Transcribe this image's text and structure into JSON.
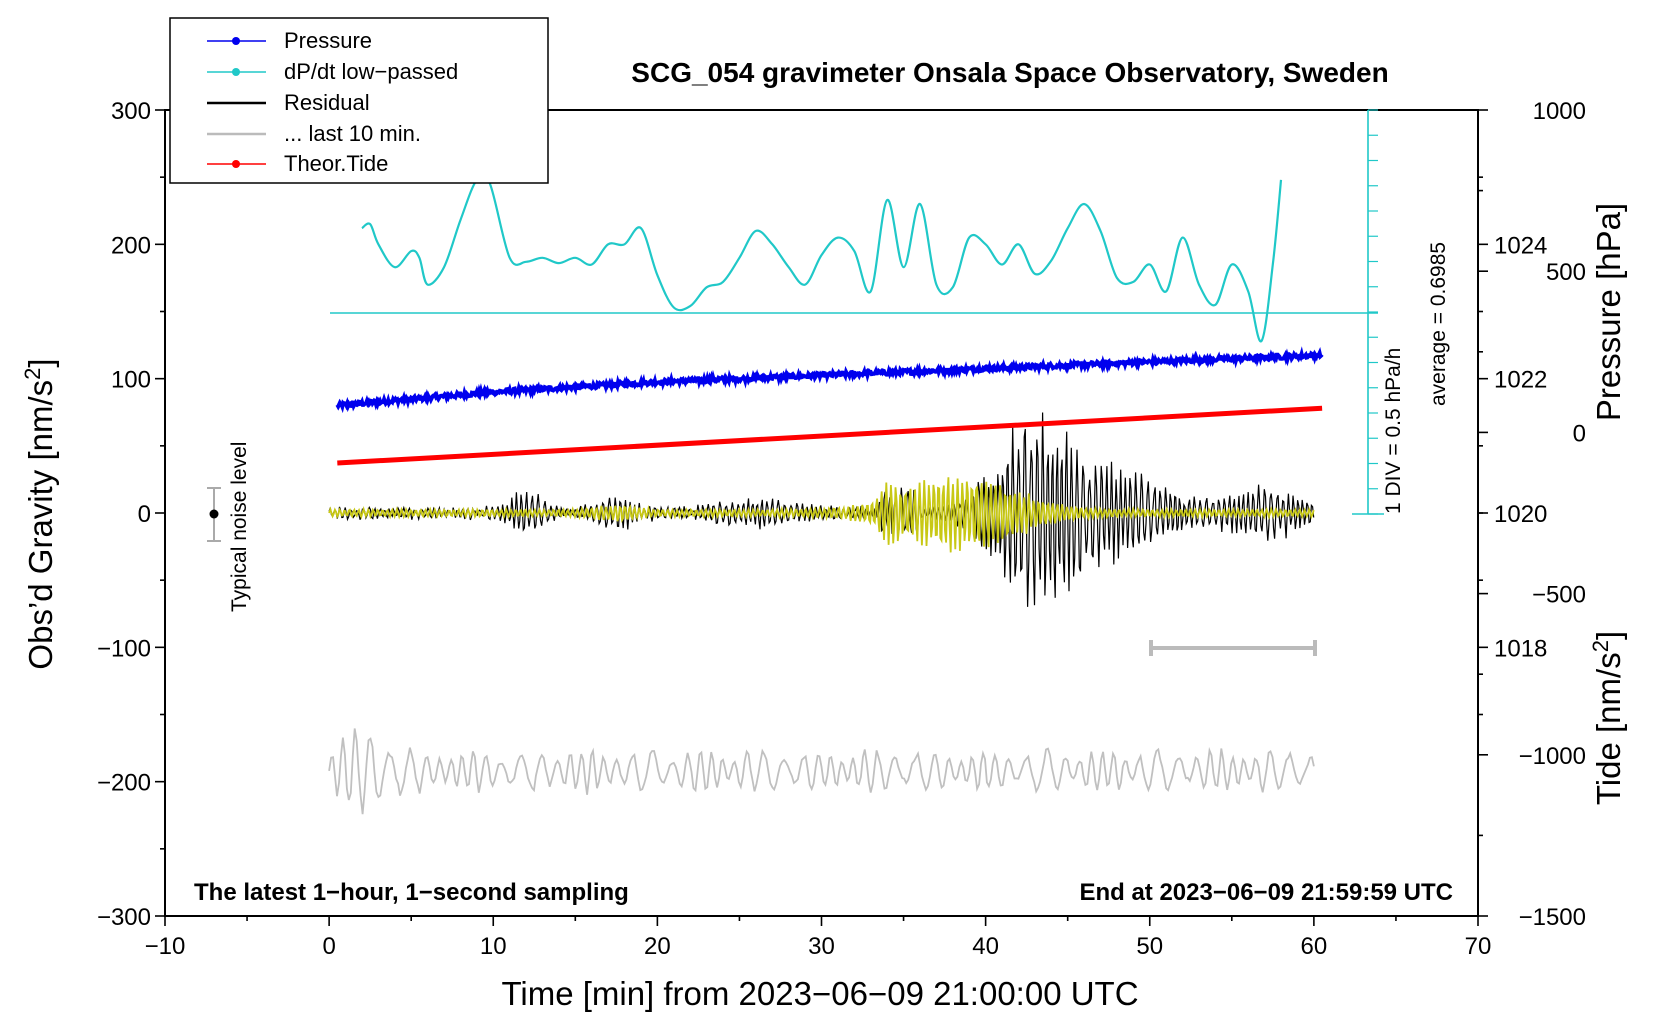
{
  "chart_data": {
    "type": "line",
    "title": "SCG_054 gravimeter Onsala Space Observatory, Sweden",
    "xlabel": "Time [min] from 2023−06−09 21:00:00 UTC",
    "ylabel_left": "Obs’d Gravity [nm/s",
    "ylabel_left_sup": "2",
    "ylabel_left_end": "]",
    "ylabel_pressure": "Pressure [hPa]",
    "ylabel_tide": "Tide [nm/s",
    "ylabel_tide_sup": "2",
    "ylabel_tide_end": "]",
    "xlim": [
      -10,
      70
    ],
    "ylim": [
      -300,
      300
    ],
    "x_ticks": [
      -10,
      0,
      10,
      20,
      30,
      40,
      50,
      60,
      70
    ],
    "x_tick_labels": [
      "−10",
      "0",
      "10",
      "20",
      "30",
      "40",
      "50",
      "60",
      "70"
    ],
    "y_ticks": [
      -300,
      -200,
      -100,
      0,
      100,
      200,
      300
    ],
    "y_tick_labels": [
      "−300",
      "−200",
      "−100",
      "0",
      "100",
      "200",
      "300"
    ],
    "pressure_axis": {
      "ticks": [
        1018,
        1020,
        1022,
        1024
      ],
      "tick_labels": [
        "1018",
        "1020",
        "1022",
        "1024"
      ],
      "range": [
        1014,
        1026
      ]
    },
    "tide_axis": {
      "ticks": [
        -1500,
        -1000,
        -500,
        0,
        500,
        1000
      ],
      "tick_labels": [
        "−1500",
        "−1000",
        "−500",
        "0",
        "500",
        "1000"
      ],
      "range": [
        -1500,
        1000
      ]
    },
    "legend": [
      {
        "label": "Pressure",
        "color": "#0000ee",
        "marker": true
      },
      {
        "label": "dP/dt low−passed",
        "color": "#20c8c8",
        "marker": true
      },
      {
        "label": "Residual",
        "color": "#000000",
        "marker": false
      },
      {
        "label": "... last 10 min.",
        "color": "#bbbbbb",
        "marker": false
      },
      {
        "label": "Theor.Tide",
        "color": "#ff0000",
        "marker": true
      }
    ],
    "annotations": {
      "scale_div": "1 DIV = 0.5 hPa/h",
      "scale_avg": "average = 0.6985",
      "noise": "Typical noise level",
      "bottom_left": "The latest 1−hour, 1−second sampling",
      "bottom_right": "End at 2023−06−09 21:59:59 UTC"
    },
    "series": [
      {
        "name": "Pressure",
        "axis": "pressure",
        "color": "#0000ee",
        "x": [
          0.5,
          10,
          20,
          30,
          40,
          50,
          60.5
        ],
        "y": [
          1021.6,
          1021.8,
          1021.95,
          1022.05,
          1022.15,
          1022.25,
          1022.35
        ]
      },
      {
        "name": "dP/dt low-passed",
        "axis": "gravity",
        "color": "#20c8c8",
        "x": [
          2,
          2.5,
          3,
          4,
          5,
          5.5,
          6,
          7,
          8,
          9,
          9.8,
          11,
          12,
          13,
          14,
          15,
          16,
          17,
          18,
          19,
          20,
          21,
          22,
          23,
          24,
          25,
          26,
          27,
          28,
          29,
          30,
          31,
          32,
          33,
          34,
          35,
          36,
          37,
          38,
          39,
          40,
          41,
          42,
          43,
          44,
          45,
          46,
          47,
          48,
          49,
          50,
          51,
          52,
          53,
          54,
          55,
          56,
          56.8,
          57.5,
          58
        ],
        "y": [
          212,
          215,
          200,
          183,
          195,
          190,
          170,
          183,
          218,
          248,
          245,
          190,
          187,
          190,
          186,
          190,
          185,
          200,
          200,
          212,
          177,
          153,
          154,
          168,
          172,
          190,
          210,
          200,
          183,
          170,
          192,
          205,
          195,
          165,
          233,
          183,
          230,
          170,
          168,
          205,
          200,
          185,
          200,
          178,
          188,
          212,
          230,
          210,
          175,
          172,
          185,
          165,
          205,
          170,
          155,
          185,
          165,
          128,
          185,
          248
        ]
      },
      {
        "name": "Residual",
        "axis": "gravity",
        "color": "#000000"
      },
      {
        "name": "... last 10 min.",
        "axis": "gravity",
        "color": "#bbbbbb"
      },
      {
        "name": "Theor.Tide",
        "axis": "tide",
        "color": "#ff0000",
        "x": [
          0.5,
          60.5
        ],
        "y": [
          -95,
          75
        ]
      }
    ]
  }
}
